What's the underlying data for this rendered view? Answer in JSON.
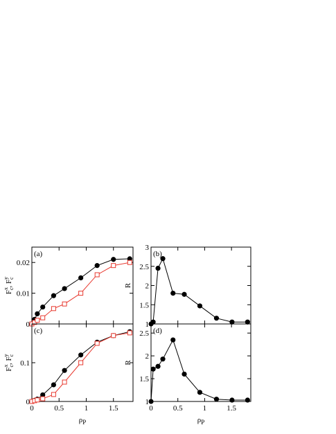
{
  "chart_data": [
    {
      "type": "line",
      "panel_label": "(a)",
      "ylabel": [
        "F",
        "x",
        "c",
        ", F",
        "y",
        "c"
      ],
      "xlabel": null,
      "show_xtick_labels": false,
      "x": [
        0,
        0.05,
        0.1,
        0.2,
        0.4,
        0.6,
        0.9,
        1.2,
        1.5,
        1.8
      ],
      "xlim": [
        0,
        1.86
      ],
      "xticks": [
        0,
        0.5,
        1,
        1.5
      ],
      "ylim": [
        0,
        0.025
      ],
      "yticks": [
        0,
        0.01,
        0.02
      ],
      "series": [
        {
          "color": "#000000",
          "marker": "circle",
          "values": [
            0,
            0.0015,
            0.0033,
            0.0055,
            0.0092,
            0.0115,
            0.015,
            0.019,
            0.021,
            0.0212
          ]
        },
        {
          "color": "#e8392f",
          "marker": "square",
          "values": [
            0,
            0.0005,
            0.0012,
            0.002,
            0.005,
            0.0065,
            0.01,
            0.016,
            0.019,
            0.02
          ]
        }
      ]
    },
    {
      "type": "line",
      "panel_label": "(b)",
      "ylabel": [
        "R"
      ],
      "xlabel": null,
      "show_xtick_labels": false,
      "x": [
        0,
        0.04,
        0.13,
        0.22,
        0.41,
        0.62,
        0.91,
        1.22,
        1.51,
        1.8
      ],
      "xlim": [
        0,
        1.86
      ],
      "xticks": [
        0,
        0.5,
        1,
        1.5
      ],
      "ylim": [
        1,
        3
      ],
      "yticks": [
        1,
        1.5,
        2,
        2.5,
        3
      ],
      "series": [
        {
          "color": "#000000",
          "marker": "circle",
          "values": [
            1.0,
            1.05,
            2.45,
            2.7,
            1.8,
            1.77,
            1.47,
            1.15,
            1.05,
            1.05
          ]
        }
      ]
    },
    {
      "type": "line",
      "panel_label": "(c)",
      "ylabel": [
        "F",
        "x",
        "c",
        ", F",
        "y",
        "c"
      ],
      "xlabel": [
        "ρ",
        "P"
      ],
      "show_xtick_labels": true,
      "x": [
        0,
        0.05,
        0.1,
        0.2,
        0.4,
        0.6,
        0.9,
        1.2,
        1.5,
        1.8
      ],
      "xlim": [
        0,
        1.86
      ],
      "xticks": [
        0,
        0.5,
        1,
        1.5
      ],
      "ylim": [
        0,
        0.2
      ],
      "yticks": [
        0,
        0.1
      ],
      "series": [
        {
          "color": "#000000",
          "marker": "circle",
          "values": [
            0,
            0.003,
            0.006,
            0.017,
            0.043,
            0.08,
            0.12,
            0.153,
            0.17,
            0.18
          ]
        },
        {
          "color": "#e8392f",
          "marker": "square",
          "values": [
            0,
            0.002,
            0.004,
            0.007,
            0.018,
            0.05,
            0.1,
            0.15,
            0.17,
            0.177
          ]
        }
      ]
    },
    {
      "type": "line",
      "panel_label": "(d)",
      "ylabel": [
        "R"
      ],
      "xlabel": [
        "ρ",
        "P"
      ],
      "show_xtick_labels": true,
      "x": [
        0,
        0.04,
        0.13,
        0.22,
        0.41,
        0.62,
        0.91,
        1.22,
        1.51,
        1.8
      ],
      "xlim": [
        0,
        1.86
      ],
      "xticks": [
        0,
        0.5,
        1,
        1.5
      ],
      "ylim": [
        1,
        2.7
      ],
      "yticks": [
        1,
        1.5,
        2,
        2.5
      ],
      "series": [
        {
          "color": "#000000",
          "marker": "circle",
          "values": [
            1.0,
            1.71,
            1.77,
            1.93,
            2.35,
            1.6,
            1.2,
            1.05,
            1.03,
            1.03
          ]
        }
      ]
    }
  ]
}
